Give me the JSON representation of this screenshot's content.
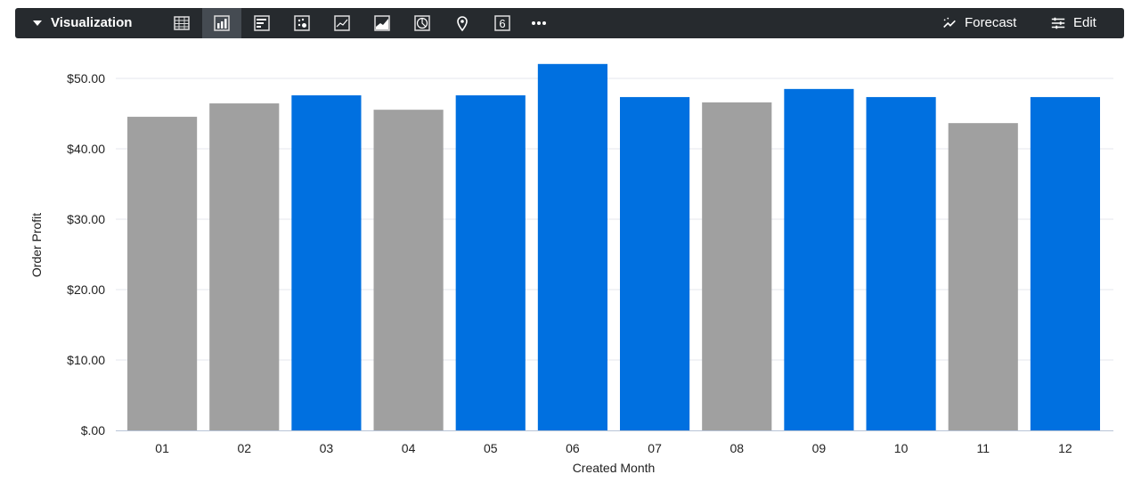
{
  "toolbar": {
    "title": "Visualization",
    "icons": [
      "table-icon",
      "column-chart-icon",
      "bar-chart-icon",
      "scatter-icon",
      "line-chart-icon",
      "area-chart-icon",
      "pie-chart-icon",
      "map-pin-icon",
      "single-value-icon",
      "more-icon"
    ],
    "active": "column-chart-icon",
    "single_value_glyph": "6",
    "forecast_label": "Forecast",
    "edit_label": "Edit"
  },
  "chart_data": {
    "type": "bar",
    "categories": [
      "01",
      "02",
      "03",
      "04",
      "05",
      "06",
      "07",
      "08",
      "09",
      "10",
      "11",
      "12"
    ],
    "values": [
      44.55,
      46.45,
      47.6,
      45.55,
      47.6,
      52.05,
      47.35,
      46.6,
      48.5,
      47.35,
      43.65,
      47.35
    ],
    "bar_colors": [
      "#a0a0a0",
      "#a0a0a0",
      "#0070e0",
      "#a0a0a0",
      "#0070e0",
      "#0070e0",
      "#0070e0",
      "#a0a0a0",
      "#0070e0",
      "#0070e0",
      "#a0a0a0",
      "#0070e0"
    ],
    "xlabel": "Created Month",
    "ylabel": "Order Profit",
    "ylim": [
      0,
      52
    ],
    "yticks": [
      0,
      10,
      20,
      30,
      40,
      50
    ],
    "ytick_labels": [
      "$.00",
      "$10.00",
      "$20.00",
      "$30.00",
      "$40.00",
      "$50.00"
    ],
    "grid": true
  }
}
